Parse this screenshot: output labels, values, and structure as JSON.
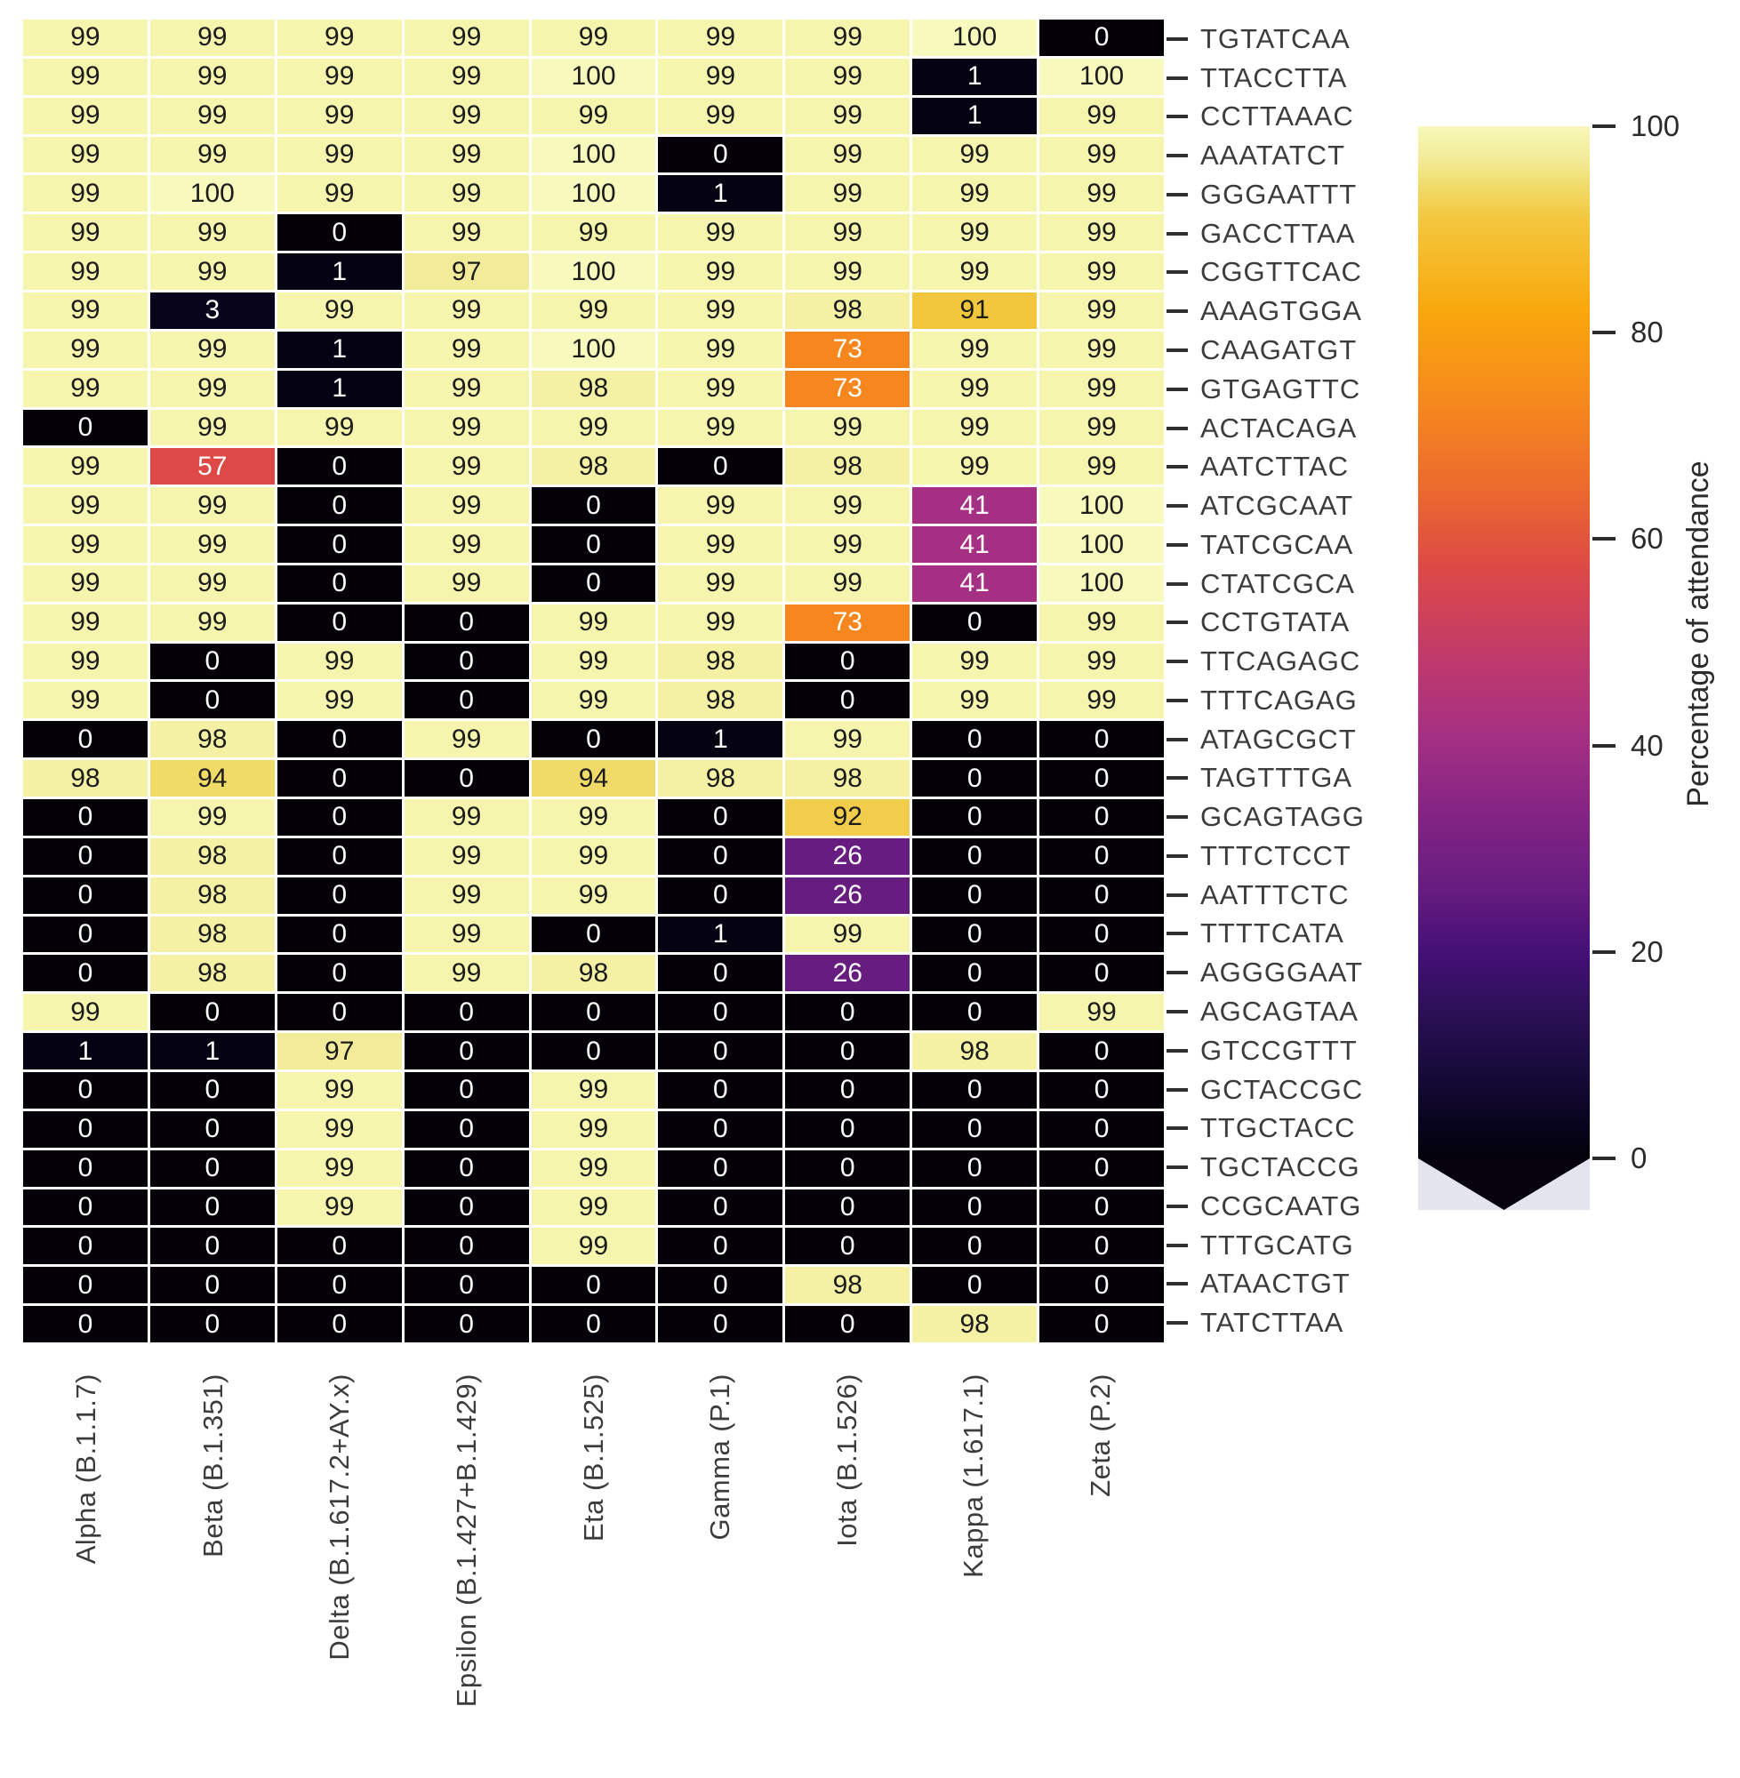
{
  "chart_data": {
    "type": "heatmap",
    "title": "",
    "rows": [
      "TGTATCAA",
      "TTACCTTA",
      "CCTTAAAC",
      "AAATATCT",
      "GGGAATTT",
      "GACCTTAA",
      "CGGTTCAC",
      "AAAGTGGA",
      "CAAGATGT",
      "GTGAGTTC",
      "ACTACAGA",
      "AATCTTAC",
      "ATCGCAAT",
      "TATCGCAA",
      "CTATCGCA",
      "CCTGTATA",
      "TTCAGAGC",
      "TTTCAGAG",
      "ATAGCGCT",
      "TAGTTTGA",
      "GCAGTAGG",
      "TTTCTCCT",
      "AATTTCTC",
      "TTTTCATA",
      "AGGGGAAT",
      "AGCAGTAA",
      "GTCCGTTT",
      "GCTACCGC",
      "TTGCTACC",
      "TGCTACCG",
      "CCGCAATG",
      "TTTGCATG",
      "ATAACTGT",
      "TATCTTAA"
    ],
    "columns": [
      "Alpha (B.1.1.7)",
      "Beta (B.1.351)",
      "Delta (B.1.617.2+AY.x)",
      "Epsilon (B.1.427+B.1.429)",
      "Eta (B.1.525)",
      "Gamma (P.1)",
      "Iota (B.1.526)",
      "Kappa (1.617.1)",
      "Zeta (P.2)"
    ],
    "values": [
      [
        99,
        99,
        99,
        99,
        99,
        99,
        99,
        100,
        0
      ],
      [
        99,
        99,
        99,
        99,
        100,
        99,
        99,
        1,
        100
      ],
      [
        99,
        99,
        99,
        99,
        99,
        99,
        99,
        1,
        99
      ],
      [
        99,
        99,
        99,
        99,
        100,
        0,
        99,
        99,
        99
      ],
      [
        99,
        100,
        99,
        99,
        100,
        1,
        99,
        99,
        99
      ],
      [
        99,
        99,
        0,
        99,
        99,
        99,
        99,
        99,
        99
      ],
      [
        99,
        99,
        1,
        97,
        100,
        99,
        99,
        99,
        99
      ],
      [
        99,
        3,
        99,
        99,
        99,
        99,
        98,
        91,
        99
      ],
      [
        99,
        99,
        1,
        99,
        100,
        99,
        73,
        99,
        99
      ],
      [
        99,
        99,
        1,
        99,
        98,
        99,
        73,
        99,
        99
      ],
      [
        0,
        99,
        99,
        99,
        99,
        99,
        99,
        99,
        99
      ],
      [
        99,
        57,
        0,
        99,
        98,
        0,
        98,
        99,
        99
      ],
      [
        99,
        99,
        0,
        99,
        0,
        99,
        99,
        41,
        100
      ],
      [
        99,
        99,
        0,
        99,
        0,
        99,
        99,
        41,
        100
      ],
      [
        99,
        99,
        0,
        99,
        0,
        99,
        99,
        41,
        100
      ],
      [
        99,
        99,
        0,
        0,
        99,
        99,
        73,
        0,
        99
      ],
      [
        99,
        0,
        99,
        0,
        99,
        98,
        0,
        99,
        99
      ],
      [
        99,
        0,
        99,
        0,
        99,
        98,
        0,
        99,
        99
      ],
      [
        0,
        98,
        0,
        99,
        0,
        1,
        99,
        0,
        0
      ],
      [
        98,
        94,
        0,
        0,
        94,
        98,
        98,
        0,
        0
      ],
      [
        0,
        99,
        0,
        99,
        99,
        0,
        92,
        0,
        0
      ],
      [
        0,
        98,
        0,
        99,
        99,
        0,
        26,
        0,
        0
      ],
      [
        0,
        98,
        0,
        99,
        99,
        0,
        26,
        0,
        0
      ],
      [
        0,
        98,
        0,
        99,
        0,
        1,
        99,
        0,
        0
      ],
      [
        0,
        98,
        0,
        99,
        98,
        0,
        26,
        0,
        0
      ],
      [
        99,
        0,
        0,
        0,
        0,
        0,
        0,
        0,
        99
      ],
      [
        1,
        1,
        97,
        0,
        0,
        0,
        0,
        98,
        0
      ],
      [
        0,
        0,
        99,
        0,
        99,
        0,
        0,
        0,
        0
      ],
      [
        0,
        0,
        99,
        0,
        99,
        0,
        0,
        0,
        0
      ],
      [
        0,
        0,
        99,
        0,
        99,
        0,
        0,
        0,
        0
      ],
      [
        0,
        0,
        99,
        0,
        99,
        0,
        0,
        0,
        0
      ],
      [
        0,
        0,
        0,
        0,
        99,
        0,
        0,
        0,
        0
      ],
      [
        0,
        0,
        0,
        0,
        0,
        0,
        98,
        0,
        0
      ],
      [
        0,
        0,
        0,
        0,
        0,
        0,
        0,
        98,
        0
      ]
    ],
    "colorbar": {
      "label": "Percentage of attendance",
      "ticks": [
        100,
        80,
        60,
        40,
        20,
        0
      ],
      "range": [
        0,
        100
      ],
      "extend": "min",
      "position": "right"
    },
    "colormap_stops": [
      [
        0,
        "#030107"
      ],
      [
        1,
        "#050211"
      ],
      [
        3,
        "#08041c"
      ],
      [
        8,
        "#160b39"
      ],
      [
        14,
        "#2a1055"
      ],
      [
        20,
        "#451077"
      ],
      [
        26,
        "#671c80"
      ],
      [
        33,
        "#822384"
      ],
      [
        41,
        "#a53083"
      ],
      [
        49,
        "#c23a69"
      ],
      [
        57,
        "#dc4947"
      ],
      [
        65,
        "#eb6a2d"
      ],
      [
        73,
        "#f6871e"
      ],
      [
        82,
        "#f9a70c"
      ],
      [
        91,
        "#f3c73d"
      ],
      [
        94,
        "#f0da68"
      ],
      [
        97,
        "#f2ec9a"
      ],
      [
        99,
        "#f6f5ae"
      ],
      [
        100,
        "#f8f9bd"
      ]
    ],
    "colors": {
      "background": "#ffffff",
      "grid_gap": "#ffffff",
      "cell_text_dark": "#1c1c1c",
      "cell_text_light": "#ffffff",
      "tick_mark": "#2f2f2f",
      "axis_label_text": "#3c3c3c",
      "colorbar_tick_text": "#2b2b2b",
      "extend_background": "#e4e4ee",
      "extend_arrow": "#06030c"
    },
    "layout_hints": {
      "grid": "off",
      "legend": "colorbar-right"
    }
  }
}
